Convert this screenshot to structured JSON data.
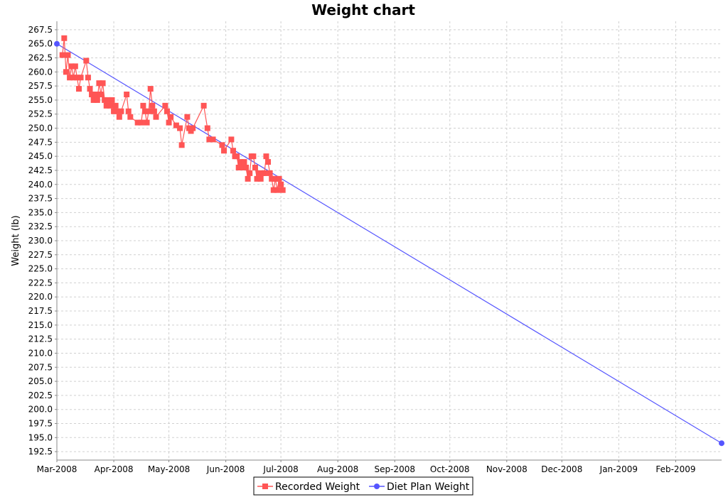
{
  "chart_data": {
    "type": "line",
    "title": "Weight chart",
    "xlabel": "",
    "ylabel": "Weight (lb)",
    "xlim": [
      "2008-03-01",
      "2009-02-26"
    ],
    "ylim": [
      191,
      269
    ],
    "grid": true,
    "legend_position": "bottom",
    "x_tick_labels": [
      "Mar-2008",
      "Apr-2008",
      "May-2008",
      "Jun-2008",
      "Jul-2008",
      "Aug-2008",
      "Sep-2008",
      "Oct-2008",
      "Nov-2008",
      "Dec-2008",
      "Jan-2009",
      "Feb-2009"
    ],
    "x_tick_dates": [
      "2008-03-01",
      "2008-04-01",
      "2008-05-01",
      "2008-06-01",
      "2008-07-01",
      "2008-08-01",
      "2008-09-01",
      "2008-10-01",
      "2008-11-01",
      "2008-12-01",
      "2009-01-01",
      "2009-02-01"
    ],
    "y_tick_labels": [
      "192.5",
      "195.0",
      "197.5",
      "200.0",
      "202.5",
      "205.0",
      "207.5",
      "210.0",
      "212.5",
      "215.0",
      "217.5",
      "220.0",
      "222.5",
      "225.0",
      "227.5",
      "230.0",
      "232.5",
      "235.0",
      "237.5",
      "240.0",
      "242.5",
      "245.0",
      "247.5",
      "250.0",
      "252.5",
      "255.0",
      "257.5",
      "260.0",
      "262.5",
      "265.0",
      "267.5"
    ],
    "series": [
      {
        "name": "Recorded Weight",
        "color": "#ff5555",
        "marker": "square",
        "points": [
          {
            "x": "2008-03-04",
            "y": 263
          },
          {
            "x": "2008-03-05",
            "y": 266
          },
          {
            "x": "2008-03-06",
            "y": 260
          },
          {
            "x": "2008-03-07",
            "y": 263
          },
          {
            "x": "2008-03-08",
            "y": 259
          },
          {
            "x": "2008-03-09",
            "y": 261
          },
          {
            "x": "2008-03-10",
            "y": 259
          },
          {
            "x": "2008-03-11",
            "y": 261
          },
          {
            "x": "2008-03-12",
            "y": 259
          },
          {
            "x": "2008-03-13",
            "y": 257
          },
          {
            "x": "2008-03-14",
            "y": 259
          },
          {
            "x": "2008-03-17",
            "y": 262
          },
          {
            "x": "2008-03-18",
            "y": 259
          },
          {
            "x": "2008-03-19",
            "y": 257
          },
          {
            "x": "2008-03-20",
            "y": 256
          },
          {
            "x": "2008-03-21",
            "y": 255
          },
          {
            "x": "2008-03-22",
            "y": 256
          },
          {
            "x": "2008-03-23",
            "y": 255
          },
          {
            "x": "2008-03-24",
            "y": 258
          },
          {
            "x": "2008-03-25",
            "y": 256
          },
          {
            "x": "2008-03-26",
            "y": 258
          },
          {
            "x": "2008-03-27",
            "y": 255
          },
          {
            "x": "2008-03-28",
            "y": 254
          },
          {
            "x": "2008-03-29",
            "y": 255
          },
          {
            "x": "2008-03-30",
            "y": 254
          },
          {
            "x": "2008-03-31",
            "y": 255
          },
          {
            "x": "2008-04-01",
            "y": 253
          },
          {
            "x": "2008-04-02",
            "y": 254
          },
          {
            "x": "2008-04-03",
            "y": 253
          },
          {
            "x": "2008-04-04",
            "y": 252
          },
          {
            "x": "2008-04-05",
            "y": 253
          },
          {
            "x": "2008-04-08",
            "y": 256
          },
          {
            "x": "2008-04-09",
            "y": 253
          },
          {
            "x": "2008-04-10",
            "y": 252
          },
          {
            "x": "2008-04-14",
            "y": 251
          },
          {
            "x": "2008-04-16",
            "y": 251
          },
          {
            "x": "2008-04-17",
            "y": 254
          },
          {
            "x": "2008-04-18",
            "y": 253
          },
          {
            "x": "2008-04-19",
            "y": 251
          },
          {
            "x": "2008-04-20",
            "y": 253
          },
          {
            "x": "2008-04-21",
            "y": 257
          },
          {
            "x": "2008-04-22",
            "y": 254
          },
          {
            "x": "2008-04-23",
            "y": 253
          },
          {
            "x": "2008-04-24",
            "y": 252
          },
          {
            "x": "2008-04-29",
            "y": 254
          },
          {
            "x": "2008-04-30",
            "y": 253
          },
          {
            "x": "2008-05-01",
            "y": 251
          },
          {
            "x": "2008-05-02",
            "y": 252
          },
          {
            "x": "2008-05-05",
            "y": 250.5
          },
          {
            "x": "2008-05-07",
            "y": 250
          },
          {
            "x": "2008-05-08",
            "y": 247
          },
          {
            "x": "2008-05-11",
            "y": 252
          },
          {
            "x": "2008-05-12",
            "y": 250
          },
          {
            "x": "2008-05-13",
            "y": 249.5
          },
          {
            "x": "2008-05-14",
            "y": 250
          },
          {
            "x": "2008-05-20",
            "y": 254
          },
          {
            "x": "2008-05-22",
            "y": 250
          },
          {
            "x": "2008-05-23",
            "y": 248
          },
          {
            "x": "2008-05-25",
            "y": 248
          },
          {
            "x": "2008-05-30",
            "y": 247
          },
          {
            "x": "2008-05-31",
            "y": 246
          },
          {
            "x": "2008-06-04",
            "y": 248
          },
          {
            "x": "2008-06-05",
            "y": 246
          },
          {
            "x": "2008-06-06",
            "y": 245
          },
          {
            "x": "2008-06-07",
            "y": 245
          },
          {
            "x": "2008-06-08",
            "y": 243
          },
          {
            "x": "2008-06-09",
            "y": 244
          },
          {
            "x": "2008-06-10",
            "y": 243
          },
          {
            "x": "2008-06-11",
            "y": 244
          },
          {
            "x": "2008-06-12",
            "y": 243
          },
          {
            "x": "2008-06-13",
            "y": 241
          },
          {
            "x": "2008-06-14",
            "y": 242
          },
          {
            "x": "2008-06-15",
            "y": 245
          },
          {
            "x": "2008-06-16",
            "y": 245
          },
          {
            "x": "2008-06-17",
            "y": 243
          },
          {
            "x": "2008-06-18",
            "y": 241
          },
          {
            "x": "2008-06-19",
            "y": 242
          },
          {
            "x": "2008-06-20",
            "y": 241
          },
          {
            "x": "2008-06-21",
            "y": 242
          },
          {
            "x": "2008-06-22",
            "y": 242
          },
          {
            "x": "2008-06-23",
            "y": 245
          },
          {
            "x": "2008-06-24",
            "y": 244
          },
          {
            "x": "2008-06-25",
            "y": 242
          },
          {
            "x": "2008-06-26",
            "y": 241
          },
          {
            "x": "2008-06-27",
            "y": 239
          },
          {
            "x": "2008-06-28",
            "y": 241
          },
          {
            "x": "2008-06-29",
            "y": 239
          },
          {
            "x": "2008-06-30",
            "y": 241
          },
          {
            "x": "2008-07-01",
            "y": 240
          },
          {
            "x": "2008-07-02",
            "y": 239
          }
        ]
      },
      {
        "name": "Diet Plan Weight",
        "color": "#5555ff",
        "marker": "circle",
        "points": [
          {
            "x": "2008-03-01",
            "y": 265
          },
          {
            "x": "2009-02-26",
            "y": 194
          }
        ]
      }
    ]
  }
}
